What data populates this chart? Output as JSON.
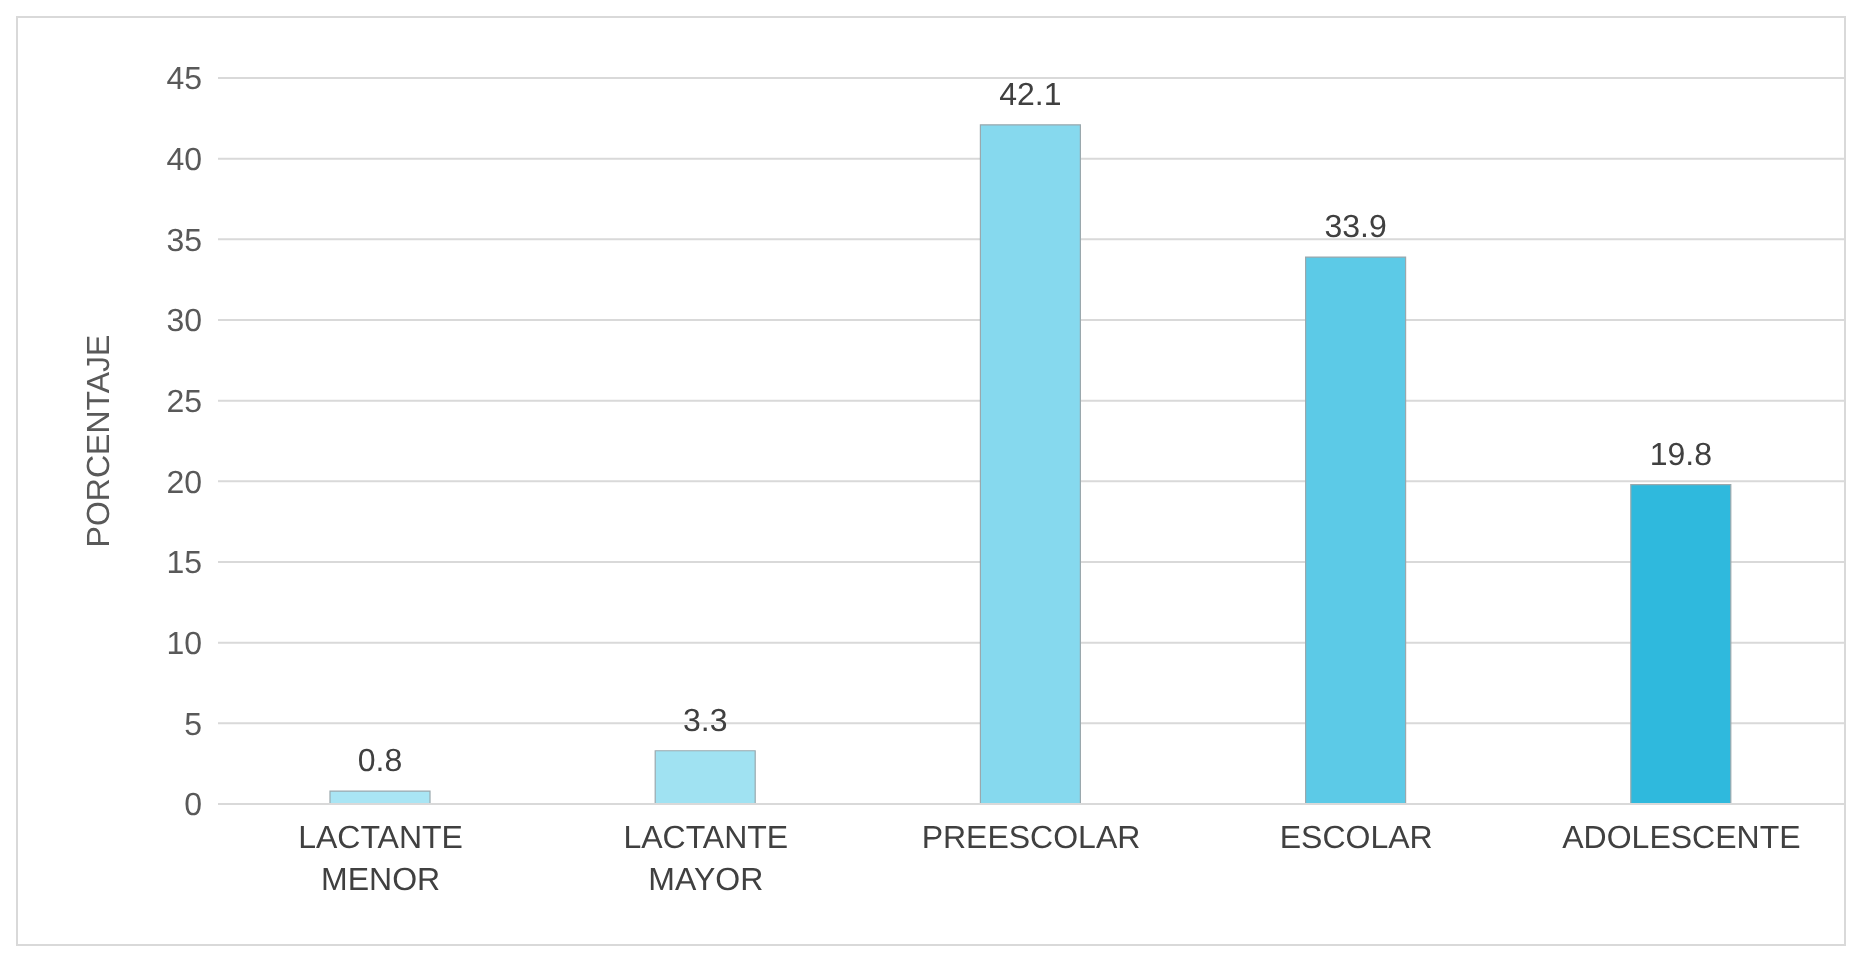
{
  "chart_data": {
    "type": "bar",
    "ylabel": "PORCENTAJE",
    "categories": [
      "LACTANTE MENOR",
      "LACTANTE MAYOR",
      "PREESCOLAR",
      "ESCOLAR",
      "ADOLESCENTE"
    ],
    "values": [
      0.8,
      3.3,
      42.1,
      33.9,
      19.8
    ],
    "colors": [
      "#a9e5f4",
      "#a0e2f2",
      "#86d9ee",
      "#5ccae7",
      "#2fb9dd"
    ],
    "ylim": [
      0,
      45
    ],
    "yticks": [
      0,
      5,
      10,
      15,
      20,
      25,
      30,
      35,
      40,
      45
    ],
    "grid": "y",
    "data_labels": true
  }
}
